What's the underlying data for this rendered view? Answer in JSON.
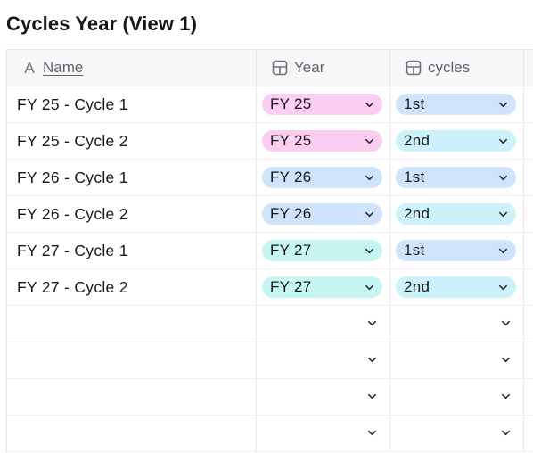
{
  "title": "Cycles Year (View 1)",
  "columns": {
    "name": "Name",
    "year": "Year",
    "cycles": "cycles"
  },
  "rows": [
    {
      "name": "FY 25 - Cycle 1",
      "year": "FY 25",
      "cycle": "1st"
    },
    {
      "name": "FY 25 - Cycle 2",
      "year": "FY 25",
      "cycle": "2nd"
    },
    {
      "name": "FY 26 - Cycle 1",
      "year": "FY 26",
      "cycle": "1st"
    },
    {
      "name": "FY 26 - Cycle 2",
      "year": "FY 26",
      "cycle": "2nd"
    },
    {
      "name": "FY 27 - Cycle 1",
      "year": "FY 27",
      "cycle": "1st"
    },
    {
      "name": "FY 27 - Cycle 2",
      "year": "FY 27",
      "cycle": "2nd"
    }
  ],
  "colors": {
    "FY 25": "#fbcdf1",
    "FY 26": "#cfe3fb",
    "FY 27": "#c7f6f2",
    "1st": "#cfe3fb",
    "2nd": "#cdf1fb"
  },
  "icons": {
    "name_header": "text-type-icon",
    "select_header": "single-select-icon",
    "dropdown": "chevron-down-icon"
  }
}
